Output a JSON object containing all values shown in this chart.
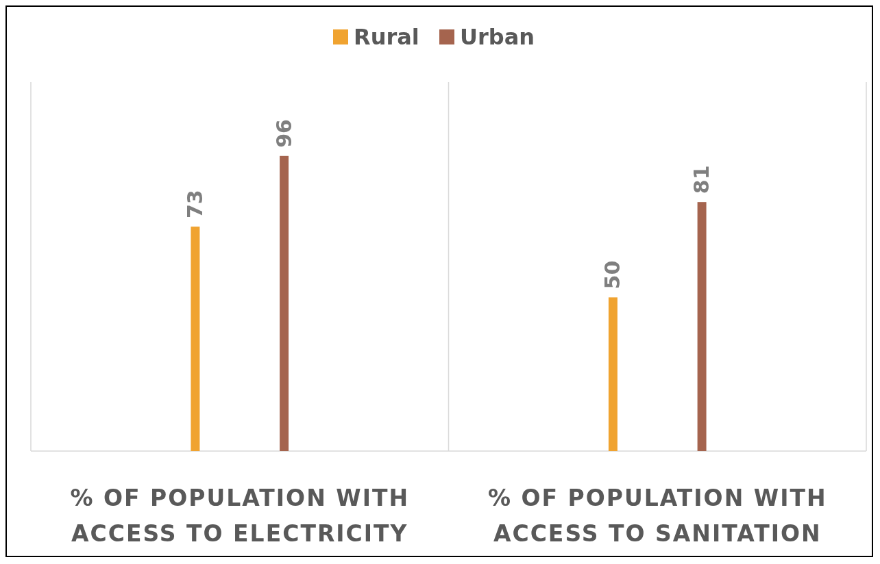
{
  "chart_data": {
    "type": "bar",
    "categories": [
      "% OF POPULATION WITH ACCESS TO ELECTRICITY",
      "% OF POPULATION WITH ACCESS TO SANITATION"
    ],
    "series": [
      {
        "name": "Rural",
        "color": "#f0a330",
        "values": [
          73,
          50
        ]
      },
      {
        "name": "Urban",
        "color": "#a5644e",
        "values": [
          96,
          81
        ]
      }
    ],
    "ylim": [
      0,
      120
    ],
    "data_labels": true,
    "legend": "top",
    "grid": "x"
  }
}
